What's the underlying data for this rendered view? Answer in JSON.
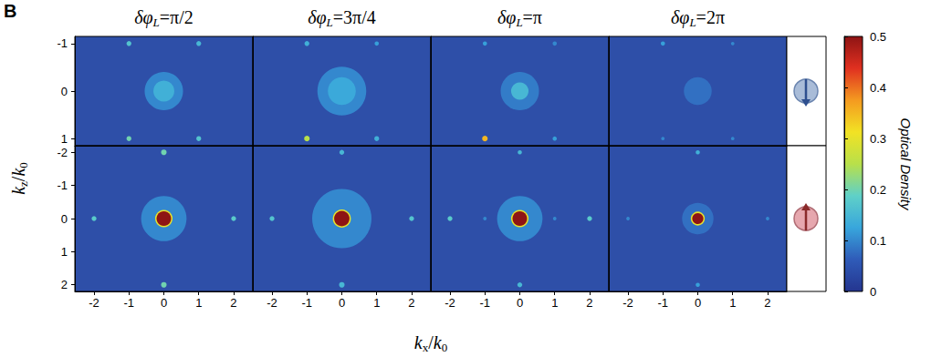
{
  "chart_data": {
    "type": "heatmap",
    "title": "B",
    "xlabel": "kx/k0",
    "ylabel": "kz/k0",
    "columns": [
      "δφL=π/2",
      "δφL=3π/4",
      "δφL=π",
      "δφL=2π"
    ],
    "xlim": [
      -2.55,
      2.55
    ],
    "xticks": [
      -2,
      -1,
      0,
      1,
      2
    ],
    "rows": [
      {
        "ylim": [
          -1.15,
          1.15
        ],
        "yticks": [
          -1,
          0,
          1
        ],
        "panels": [
          [
            {
              "x": 0,
              "z": 0,
              "od": 0.1,
              "width": 1.1
            },
            {
              "x": 0,
              "z": 0,
              "od": 0.14,
              "width": 0.6
            },
            {
              "x": -1,
              "z": -1,
              "od": 0.17,
              "width": 0.14
            },
            {
              "x": 1,
              "z": -1,
              "od": 0.15,
              "width": 0.14
            },
            {
              "x": -1,
              "z": 1,
              "od": 0.2,
              "width": 0.14
            },
            {
              "x": 1,
              "z": 1,
              "od": 0.17,
              "width": 0.14
            }
          ],
          [
            {
              "x": 0,
              "z": 0,
              "od": 0.1,
              "width": 1.4
            },
            {
              "x": 0,
              "z": 0,
              "od": 0.13,
              "width": 0.8
            },
            {
              "x": -1,
              "z": -1,
              "od": 0.14,
              "width": 0.14
            },
            {
              "x": 1,
              "z": -1,
              "od": 0.12,
              "width": 0.12
            },
            {
              "x": -1,
              "z": 1,
              "od": 0.25,
              "width": 0.16
            },
            {
              "x": 1,
              "z": 1,
              "od": 0.14,
              "width": 0.14
            }
          ],
          [
            {
              "x": 0,
              "z": 0,
              "od": 0.09,
              "width": 1.1
            },
            {
              "x": 0,
              "z": 0,
              "od": 0.15,
              "width": 0.5
            },
            {
              "x": -1,
              "z": -1,
              "od": 0.12,
              "width": 0.12
            },
            {
              "x": 1,
              "z": -1,
              "od": 0.1,
              "width": 0.12
            },
            {
              "x": -1,
              "z": 1,
              "od": 0.35,
              "width": 0.16
            },
            {
              "x": 1,
              "z": 1,
              "od": 0.12,
              "width": 0.12
            }
          ],
          [
            {
              "x": 0,
              "z": 0,
              "od": 0.08,
              "width": 0.8
            },
            {
              "x": -1,
              "z": -1,
              "od": 0.12,
              "width": 0.12
            },
            {
              "x": 1,
              "z": -1,
              "od": 0.1,
              "width": 0.1
            },
            {
              "x": -1,
              "z": 1,
              "od": 0.1,
              "width": 0.1
            },
            {
              "x": 1,
              "z": 1,
              "od": 0.1,
              "width": 0.1
            }
          ]
        ]
      },
      {
        "ylim": [
          -2.2,
          2.2
        ],
        "yticks": [
          -2,
          -1,
          0,
          1,
          2
        ],
        "panels": [
          [
            {
              "x": 0,
              "z": 0,
              "od": 0.1,
              "width": 1.3
            },
            {
              "x": 0,
              "z": 0,
              "od": 0.3,
              "width": 0.5
            },
            {
              "x": 0,
              "z": 0,
              "od": 0.5,
              "width": 0.42
            },
            {
              "x": -2,
              "z": 0,
              "od": 0.18,
              "width": 0.14
            },
            {
              "x": 2,
              "z": 0,
              "od": 0.18,
              "width": 0.14
            },
            {
              "x": 0,
              "z": -2,
              "od": 0.2,
              "width": 0.16
            },
            {
              "x": 0,
              "z": 2,
              "od": 0.2,
              "width": 0.16
            }
          ],
          [
            {
              "x": 0,
              "z": 0,
              "od": 0.1,
              "width": 1.7
            },
            {
              "x": 0,
              "z": 0,
              "od": 0.3,
              "width": 0.52
            },
            {
              "x": 0,
              "z": 0,
              "od": 0.5,
              "width": 0.44
            },
            {
              "x": -2,
              "z": 0,
              "od": 0.17,
              "width": 0.14
            },
            {
              "x": 2,
              "z": 0,
              "od": 0.17,
              "width": 0.14
            },
            {
              "x": 0,
              "z": -2,
              "od": 0.15,
              "width": 0.14
            },
            {
              "x": 0,
              "z": 2,
              "od": 0.15,
              "width": 0.16
            }
          ],
          [
            {
              "x": 0,
              "z": 0,
              "od": 0.1,
              "width": 1.3
            },
            {
              "x": 0,
              "z": 0,
              "od": 0.3,
              "width": 0.5
            },
            {
              "x": 0,
              "z": 0,
              "od": 0.5,
              "width": 0.42
            },
            {
              "x": -2,
              "z": 0,
              "od": 0.18,
              "width": 0.14
            },
            {
              "x": 2,
              "z": 0,
              "od": 0.18,
              "width": 0.14
            },
            {
              "x": -1,
              "z": 0,
              "od": 0.1,
              "width": 0.1
            },
            {
              "x": 1,
              "z": 0,
              "od": 0.1,
              "width": 0.1
            },
            {
              "x": 0,
              "z": -2,
              "od": 0.15,
              "width": 0.12
            },
            {
              "x": 0,
              "z": 2,
              "od": 0.15,
              "width": 0.14
            }
          ],
          [
            {
              "x": 0,
              "z": 0,
              "od": 0.08,
              "width": 0.9
            },
            {
              "x": 0,
              "z": 0,
              "od": 0.3,
              "width": 0.4
            },
            {
              "x": 0,
              "z": 0,
              "od": 0.5,
              "width": 0.32
            },
            {
              "x": -2,
              "z": 0,
              "od": 0.1,
              "width": 0.1
            },
            {
              "x": 2,
              "z": 0,
              "od": 0.1,
              "width": 0.1
            },
            {
              "x": 0,
              "z": -2,
              "od": 0.14,
              "width": 0.12
            },
            {
              "x": 0,
              "z": 2,
              "od": 0.12,
              "width": 0.12
            }
          ]
        ]
      }
    ],
    "colorbar": {
      "label": "Optical Density",
      "range": [
        0,
        0.5
      ],
      "ticks": [
        0,
        0.1,
        0.2,
        0.3,
        0.4,
        0.5
      ]
    }
  }
}
